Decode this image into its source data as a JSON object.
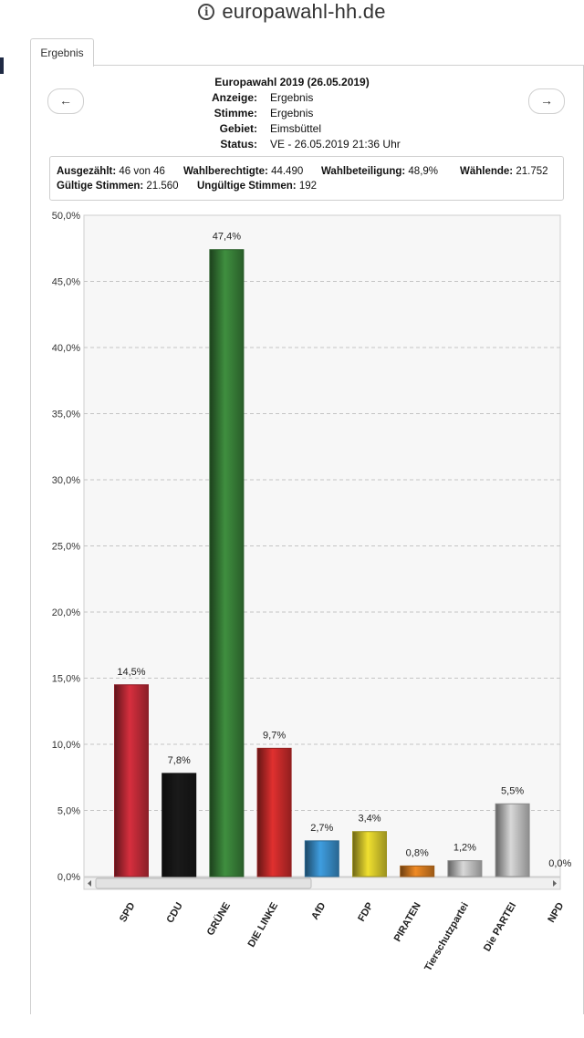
{
  "browser": {
    "url": "europawahl-hh.de"
  },
  "tab": {
    "label": "Ergebnis"
  },
  "nav": {
    "prev": "←",
    "next": "→"
  },
  "header": {
    "title": "Europawahl 2019 (26.05.2019)",
    "rows": [
      {
        "key": "Anzeige:",
        "value": "Ergebnis"
      },
      {
        "key": "Stimme:",
        "value": "Ergebnis"
      },
      {
        "key": "Gebiet:",
        "value": "Eimsbüttel"
      },
      {
        "key": "Status:",
        "value": "VE - 26.05.2019 21:36 Uhr"
      }
    ]
  },
  "stats": {
    "counted_label": "Ausgezählt:",
    "counted_value": "46 von 46",
    "eligible_label": "Wahlberechtigte:",
    "eligible_value": "44.490",
    "turnout_label": "Wahlbeteiligung:",
    "turnout_value": "48,9%",
    "voters_label": "Wählende:",
    "voters_value": "21.752",
    "valid_label": "Gültige Stimmen:",
    "valid_value": "21.560",
    "invalid_label": "Ungültige Stimmen:",
    "invalid_value": "192"
  },
  "chart_data": {
    "type": "bar",
    "title": "",
    "xlabel": "",
    "ylabel": "",
    "ylim": [
      0,
      50
    ],
    "yticks": [
      "0,0%",
      "5,0%",
      "10,0%",
      "15,0%",
      "20,0%",
      "25,0%",
      "30,0%",
      "35,0%",
      "40,0%",
      "45,0%",
      "50,0%"
    ],
    "grid": true,
    "categories": [
      "SPD",
      "CDU",
      "GRÜNE",
      "DIE LINKE",
      "AfD",
      "FDP",
      "PIRATEN",
      "Tierschutzpartei",
      "Die PARTEI",
      "NPD"
    ],
    "values": [
      14.5,
      7.8,
      47.4,
      9.7,
      2.7,
      3.4,
      0.8,
      1.2,
      5.5,
      0.0
    ],
    "labels": [
      "14,5%",
      "7,8%",
      "47,4%",
      "9,7%",
      "2,7%",
      "3,4%",
      "0,8%",
      "1,2%",
      "5,5%",
      "0,0%"
    ],
    "colors": [
      "#d62f3e",
      "#1a1a1a",
      "#3f8f3f",
      "#e0302f",
      "#3f9ee0",
      "#f0e030",
      "#f08a24",
      "#d8d8d8",
      "#d8d8d8",
      "#8a6d3b"
    ]
  }
}
